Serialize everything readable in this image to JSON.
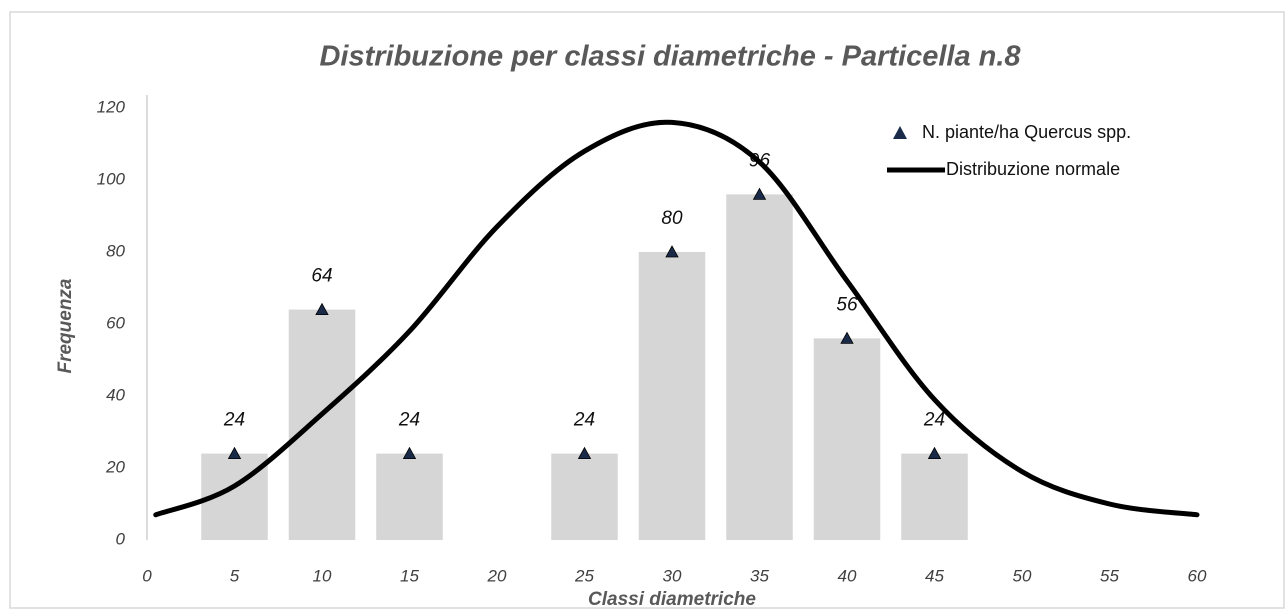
{
  "chart_data": {
    "type": "bar",
    "title": "Distribuzione per classi diametriche - Particella n.8",
    "x_label": "Classi diametriche",
    "y_label": "Frequenza",
    "xlim": [
      0,
      60
    ],
    "ylim": [
      0,
      120
    ],
    "xticks": [
      0,
      5,
      10,
      15,
      20,
      25,
      30,
      35,
      40,
      45,
      50,
      55,
      60
    ],
    "yticks": [
      0,
      20,
      40,
      60,
      80,
      100,
      120
    ],
    "legend": "upper right",
    "series": [
      {
        "name": "N. piante/ha Quercus spp.",
        "type": "bar",
        "color": "#d6d6d6",
        "marker_color": "#1a2b4a",
        "x": [
          5,
          10,
          15,
          25,
          30,
          35,
          40,
          45
        ],
        "values": [
          24,
          64,
          24,
          24,
          80,
          96,
          56,
          24
        ]
      },
      {
        "name": "Distribuzione normale",
        "type": "line",
        "color": "#000000",
        "x": [
          0.5,
          5,
          10,
          15,
          20,
          25,
          30,
          35,
          40,
          45,
          50,
          55,
          60
        ],
        "values": [
          7,
          15,
          35,
          58,
          87,
          108,
          116,
          105,
          72,
          39,
          19,
          10,
          7
        ]
      }
    ]
  }
}
